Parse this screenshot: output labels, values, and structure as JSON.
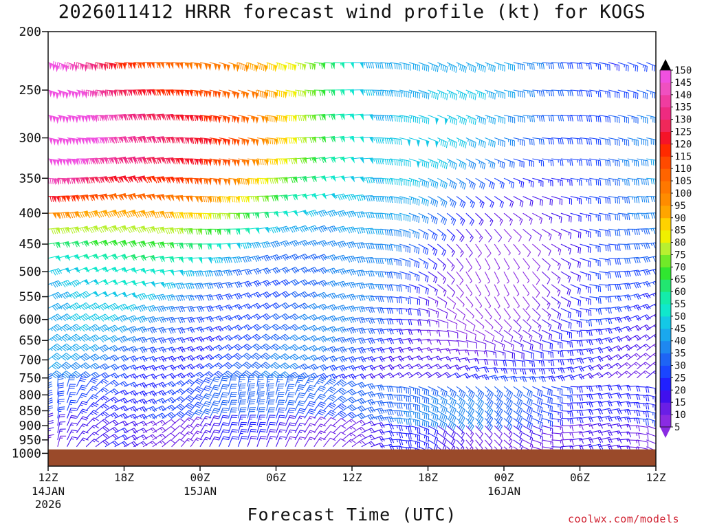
{
  "chart_data": {
    "type": "scatter",
    "title": "2026011412 HRRR forecast wind profile (kt) for KOGS",
    "xlabel": "Forecast Time (UTC)",
    "ylabel": "",
    "x_axis": {
      "range_hours": [
        0,
        48
      ],
      "ticks": [
        {
          "hour": 0,
          "label": "12Z",
          "date": "14JAN",
          "year": "2026"
        },
        {
          "hour": 6,
          "label": "18Z",
          "date": "",
          "year": ""
        },
        {
          "hour": 12,
          "label": "00Z",
          "date": "15JAN",
          "year": ""
        },
        {
          "hour": 18,
          "label": "06Z",
          "date": "",
          "year": ""
        },
        {
          "hour": 24,
          "label": "12Z",
          "date": "",
          "year": ""
        },
        {
          "hour": 30,
          "label": "18Z",
          "date": "",
          "year": ""
        },
        {
          "hour": 36,
          "label": "00Z",
          "date": "16JAN",
          "year": ""
        },
        {
          "hour": 42,
          "label": "06Z",
          "date": "",
          "year": ""
        },
        {
          "hour": 48,
          "label": "12Z",
          "date": "",
          "year": ""
        }
      ]
    },
    "y_axis": {
      "scale": "log",
      "range_hpa": [
        1050,
        200
      ],
      "ticks": [
        200,
        250,
        300,
        350,
        400,
        450,
        500,
        550,
        600,
        650,
        700,
        750,
        800,
        850,
        900,
        950,
        1000
      ]
    },
    "colorbar": {
      "units": "kt",
      "levels": [
        5,
        10,
        15,
        20,
        25,
        30,
        35,
        40,
        45,
        50,
        55,
        60,
        65,
        70,
        75,
        80,
        85,
        90,
        95,
        100,
        105,
        110,
        115,
        120,
        125,
        130,
        135,
        140,
        145,
        150
      ],
      "colors": [
        "#8a2be2",
        "#6a1ee6",
        "#4010ee",
        "#2020ff",
        "#1a46ff",
        "#1e64f5",
        "#1e88f0",
        "#1aa8ee",
        "#14c8e6",
        "#10e8cc",
        "#14ecaa",
        "#22e670",
        "#30e630",
        "#70ea28",
        "#b8f030",
        "#f0f000",
        "#ffd200",
        "#ffa500",
        "#ff8c00",
        "#ff7800",
        "#ff6400",
        "#ff4a00",
        "#ff2a00",
        "#f51428",
        "#f0285a",
        "#ee2a80",
        "#f03ca0",
        "#f050c0",
        "#f050e0"
      ]
    },
    "terrain_color": "#9a4a2a",
    "surface_pressure_hpa": 985
  },
  "watermark": "coolwx.com/models"
}
